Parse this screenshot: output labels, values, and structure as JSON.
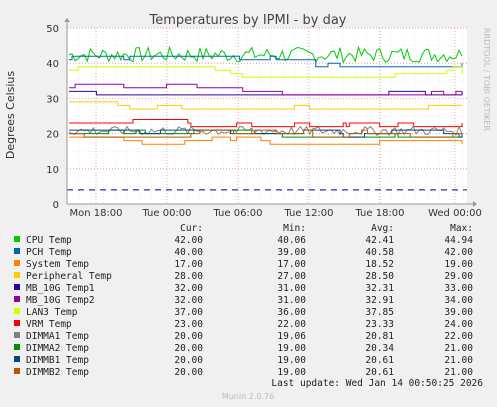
{
  "chart_data": {
    "type": "line",
    "title": "Temperatures by IPMI - by day",
    "ylabel": "Degrees Celsius",
    "side_label": "RRDTOOL / TOBI OETIKER",
    "x_ticks": [
      "Mon 18:00",
      "Tue 00:00",
      "Tue 06:00",
      "Tue 12:00",
      "Tue 18:00",
      "Wed 00:00"
    ],
    "y_ticks": [
      0,
      10,
      20,
      30,
      40,
      50
    ],
    "ylim": [
      0,
      50
    ],
    "grid": true,
    "legend_position": "bottom",
    "columns": [
      "Cur:",
      "Min:",
      "Avg:",
      "Max:"
    ],
    "series": [
      {
        "name": "CPU Temp",
        "color": "#00cc00",
        "cur": "42.00",
        "min": "40.06",
        "avg": "42.41",
        "max": "44.94"
      },
      {
        "name": "PCH Temp",
        "color": "#0066b3",
        "cur": "40.00",
        "min": "39.00",
        "avg": "40.58",
        "max": "42.00"
      },
      {
        "name": "System Temp",
        "color": "#ff8000",
        "cur": "17.00",
        "min": "17.00",
        "avg": "18.52",
        "max": "19.00"
      },
      {
        "name": "Peripheral Temp",
        "color": "#ffcc00",
        "cur": "28.00",
        "min": "27.00",
        "avg": "28.50",
        "max": "29.00"
      },
      {
        "name": "MB_10G Temp1",
        "color": "#330099",
        "cur": "32.00",
        "min": "31.00",
        "avg": "32.31",
        "max": "33.00"
      },
      {
        "name": "MB_10G Temp2",
        "color": "#990099",
        "cur": "32.00",
        "min": "31.00",
        "avg": "32.91",
        "max": "34.00"
      },
      {
        "name": "LAN3 Temp",
        "color": "#ccff00",
        "cur": "37.00",
        "min": "36.00",
        "avg": "37.85",
        "max": "39.00"
      },
      {
        "name": "VRM Temp",
        "color": "#ff0000",
        "cur": "23.00",
        "min": "22.00",
        "avg": "23.33",
        "max": "24.00"
      },
      {
        "name": "DIMMA1 Temp",
        "color": "#808080",
        "cur": "20.00",
        "min": "19.06",
        "avg": "20.81",
        "max": "22.00"
      },
      {
        "name": "DIMMA2 Temp",
        "color": "#008f00",
        "cur": "20.00",
        "min": "19.00",
        "avg": "20.34",
        "max": "21.00"
      },
      {
        "name": "DIMMB1 Temp",
        "color": "#00487d",
        "cur": "20.00",
        "min": "19.00",
        "avg": "20.61",
        "max": "21.00"
      },
      {
        "name": "DIMMB2 Temp",
        "color": "#b35a00",
        "cur": "20.00",
        "min": "19.00",
        "avg": "20.61",
        "max": "21.00"
      }
    ],
    "warning_levels": [
      {
        "value": 4,
        "color": "#000080"
      },
      {
        "value": 0,
        "color": "#000080"
      }
    ],
    "last_update": "Last update: Wed Jan 14 00:50:25 2026",
    "footer": "Munin 2.0.76"
  }
}
